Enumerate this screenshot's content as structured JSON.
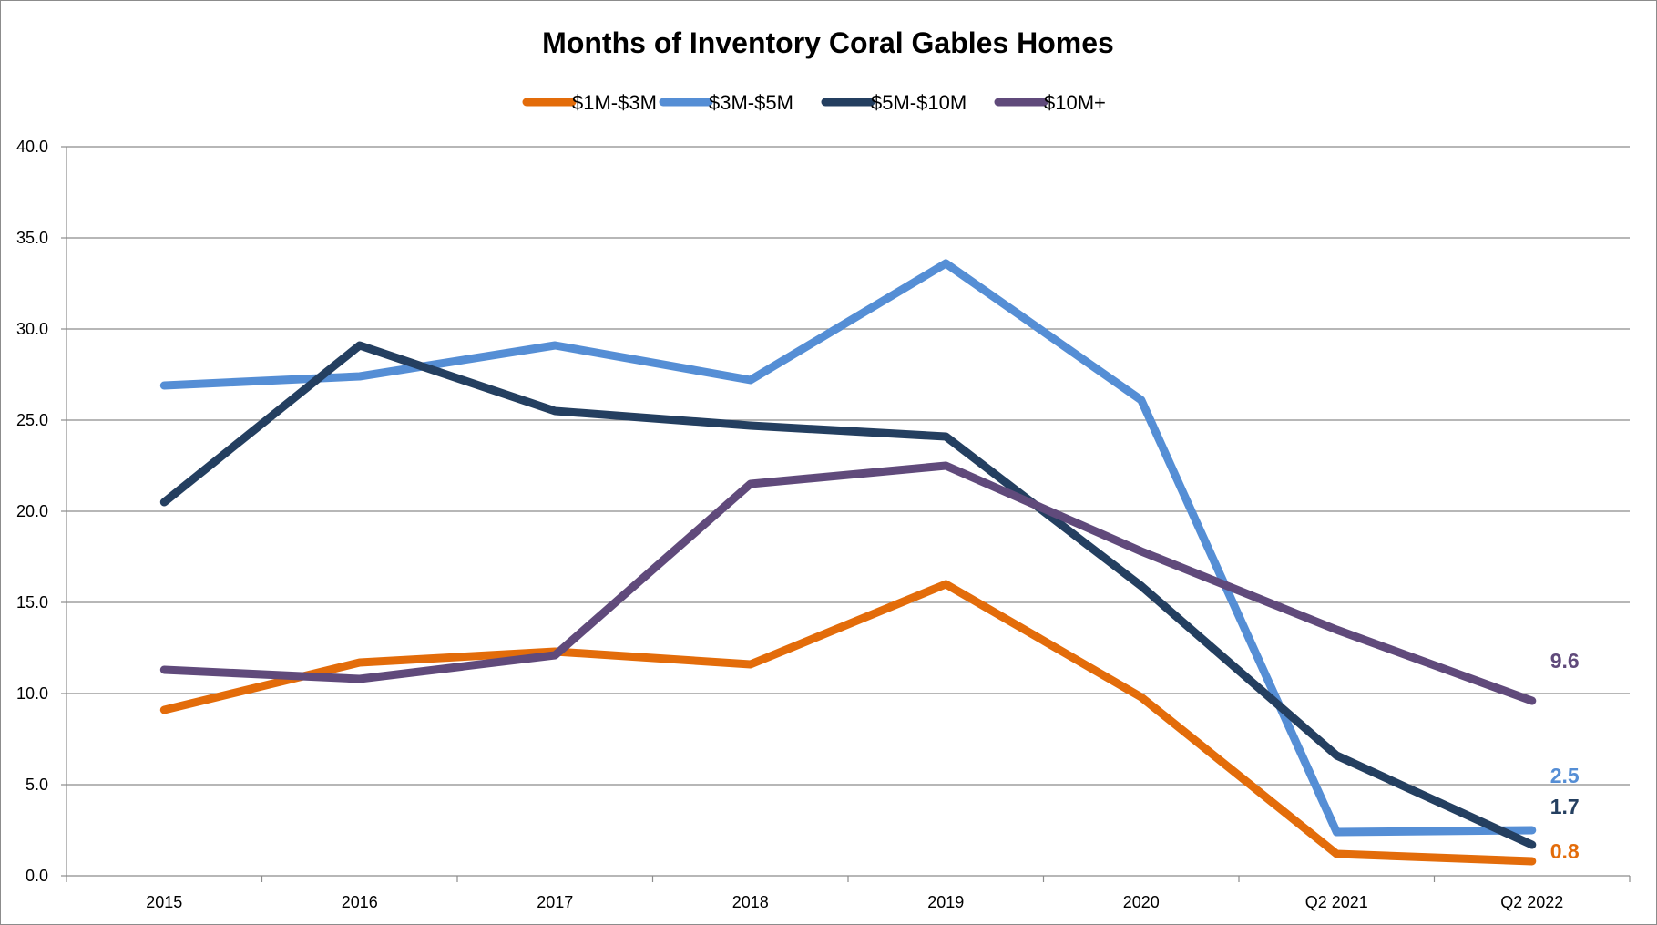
{
  "chart_data": {
    "type": "line",
    "title": "Months of Inventory Coral Gables Homes",
    "xlabel": "",
    "ylabel": "",
    "categories": [
      "2015",
      "2016",
      "2017",
      "2018",
      "2019",
      "2020",
      "Q2 2021",
      "Q2 2022"
    ],
    "ylim": [
      0,
      40
    ],
    "yticks": [
      "0.0",
      "5.0",
      "10.0",
      "15.0",
      "20.0",
      "25.0",
      "30.0",
      "35.0",
      "40.0"
    ],
    "grid": true,
    "legend_position": "top-center",
    "series": [
      {
        "name": "$1M-$3M",
        "color": "#E36C0A",
        "values": [
          9.1,
          11.7,
          12.3,
          11.6,
          16.0,
          9.8,
          1.2,
          0.8
        ],
        "end_label": "0.8"
      },
      {
        "name": "$3M-$5M",
        "color": "#558ED5",
        "values": [
          26.9,
          27.4,
          29.1,
          27.2,
          33.6,
          26.1,
          2.4,
          2.5
        ],
        "end_label": "2.5"
      },
      {
        "name": "$5M-$10M",
        "color": "#243F60",
        "values": [
          20.5,
          29.1,
          25.5,
          24.7,
          24.1,
          15.9,
          6.6,
          1.7
        ],
        "end_label": "1.7"
      },
      {
        "name": "$10M+",
        "color": "#604A7B",
        "values": [
          11.3,
          10.8,
          12.1,
          21.5,
          22.5,
          17.8,
          13.5,
          9.6
        ],
        "end_label": "9.6"
      }
    ]
  }
}
